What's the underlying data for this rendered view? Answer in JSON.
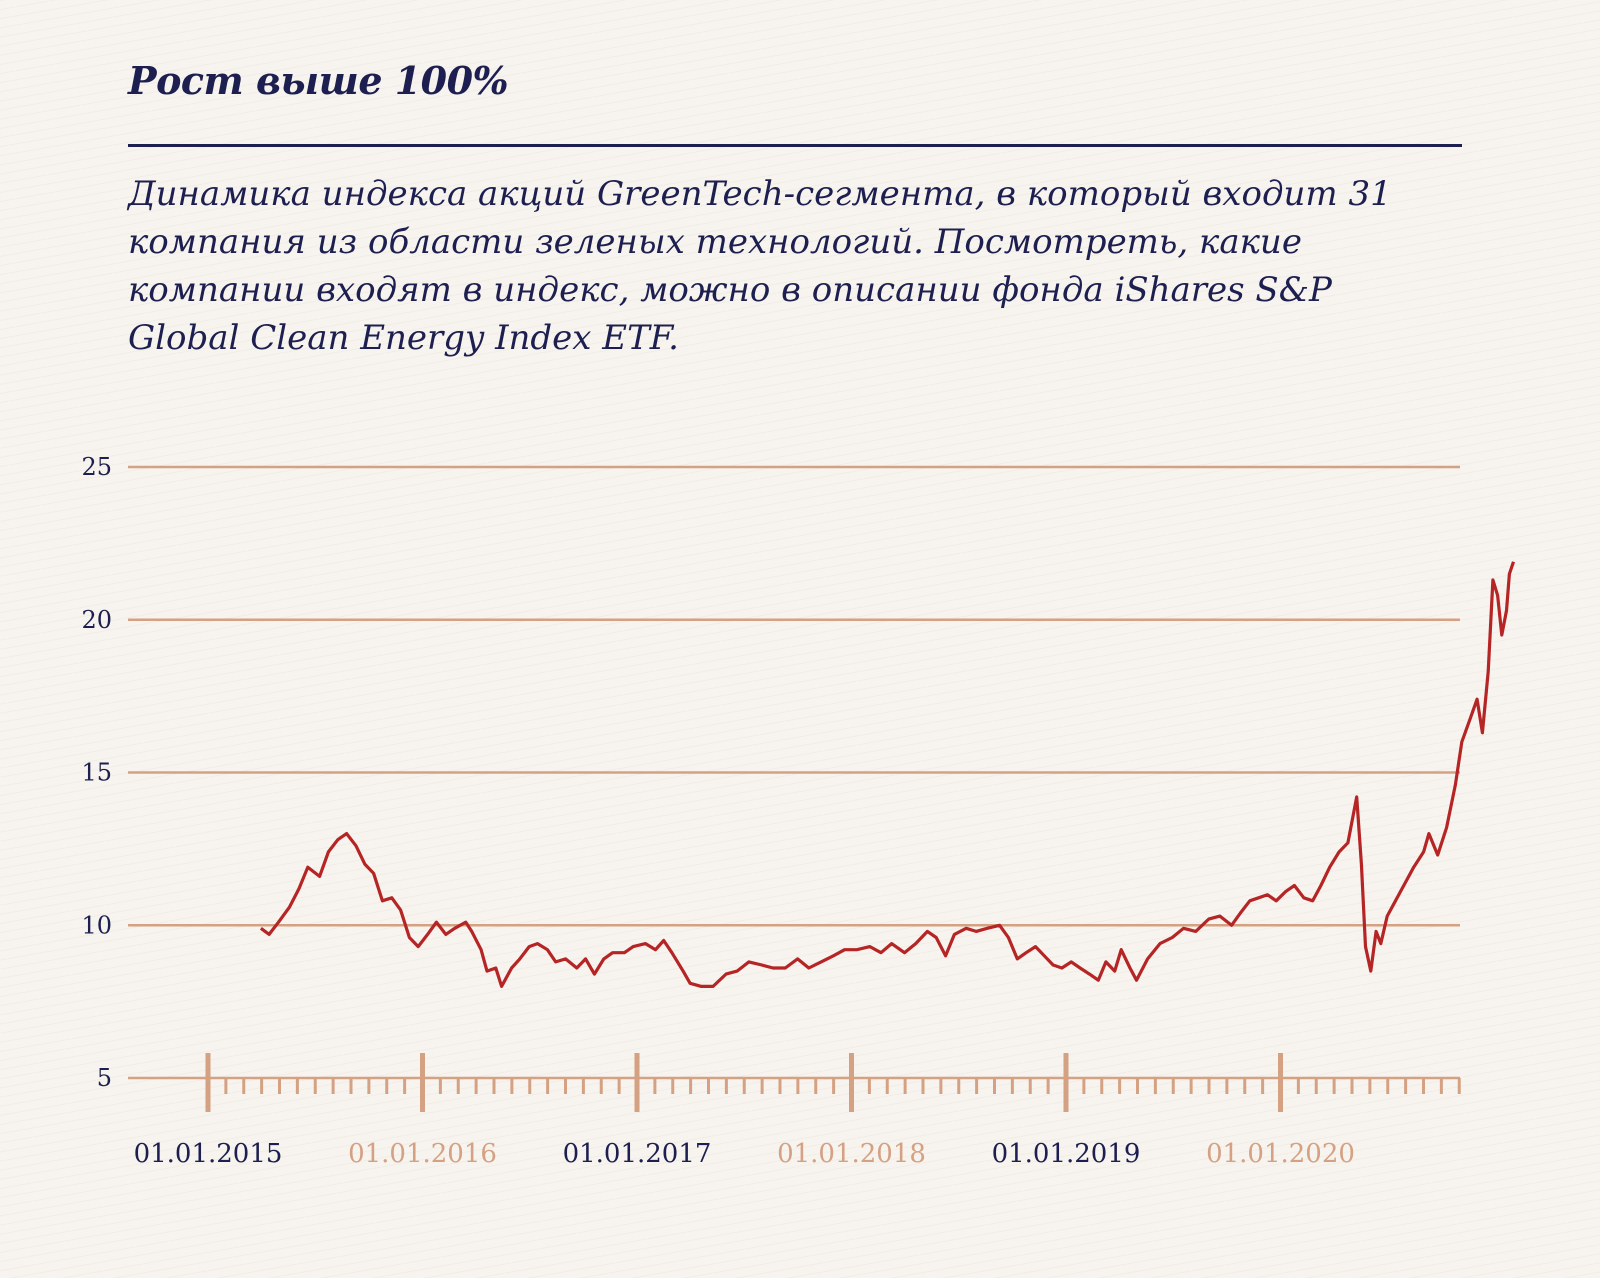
{
  "title": "Рост выше 100%",
  "subtitle": "Динамика индекса акций GreenTech-сегмента, в который входит 31 компания из области зеленых технологий. Посмотреть, какие компании входят в индекс, можно в описании фонда iShares S&P Global Clean Energy Index ETF.",
  "colors": {
    "text": "#1c1f4f",
    "grid": "#d4a183",
    "line": "#b52525",
    "tick_label_alt": "#d4a183",
    "background": "#f7f3ee"
  },
  "chart_data": {
    "type": "line",
    "title": "",
    "xlabel": "",
    "ylabel": "",
    "ylim": [
      5,
      25
    ],
    "yticks": [
      25,
      20,
      15,
      10,
      5
    ],
    "grid": true,
    "x_tick_labels": [
      "01.01.2015",
      "01.01.2016",
      "01.01.2017",
      "01.01.2018",
      "01.01.2019",
      "01.01.2020"
    ],
    "series": [
      {
        "values": [
          [
            "2015-04-01",
            9.9
          ],
          [
            "2015-04-15",
            9.7
          ],
          [
            "2015-05-01",
            10.1
          ],
          [
            "2015-05-20",
            10.6
          ],
          [
            "2015-06-05",
            11.2
          ],
          [
            "2015-06-20",
            11.9
          ],
          [
            "2015-07-10",
            11.6
          ],
          [
            "2015-07-25",
            12.4
          ],
          [
            "2015-08-10",
            12.8
          ],
          [
            "2015-08-25",
            13.0
          ],
          [
            "2015-09-10",
            12.6
          ],
          [
            "2015-09-25",
            12.0
          ],
          [
            "2015-10-10",
            11.7
          ],
          [
            "2015-10-25",
            10.8
          ],
          [
            "2015-11-10",
            10.9
          ],
          [
            "2015-11-25",
            10.5
          ],
          [
            "2015-12-10",
            9.6
          ],
          [
            "2015-12-25",
            9.3
          ],
          [
            "2016-01-10",
            9.7
          ],
          [
            "2016-01-25",
            10.1
          ],
          [
            "2016-02-10",
            9.7
          ],
          [
            "2016-02-25",
            9.9
          ],
          [
            "2016-03-15",
            10.1
          ],
          [
            "2016-03-25",
            9.8
          ],
          [
            "2016-04-10",
            9.2
          ],
          [
            "2016-04-20",
            8.5
          ],
          [
            "2016-05-05",
            8.6
          ],
          [
            "2016-05-15",
            8.0
          ],
          [
            "2016-06-01",
            8.6
          ],
          [
            "2016-06-15",
            8.9
          ],
          [
            "2016-07-01",
            9.3
          ],
          [
            "2016-07-15",
            9.4
          ],
          [
            "2016-08-01",
            9.2
          ],
          [
            "2016-08-15",
            8.8
          ],
          [
            "2016-09-01",
            8.9
          ],
          [
            "2016-09-20",
            8.6
          ],
          [
            "2016-10-05",
            8.9
          ],
          [
            "2016-10-20",
            8.4
          ],
          [
            "2016-11-05",
            8.9
          ],
          [
            "2016-11-20",
            9.1
          ],
          [
            "2016-12-10",
            9.1
          ],
          [
            "2016-12-25",
            9.3
          ],
          [
            "2017-01-15",
            9.4
          ],
          [
            "2017-02-01",
            9.2
          ],
          [
            "2017-02-15",
            9.5
          ],
          [
            "2017-03-01",
            9.1
          ],
          [
            "2017-03-20",
            8.5
          ],
          [
            "2017-04-01",
            8.1
          ],
          [
            "2017-04-20",
            8.0
          ],
          [
            "2017-05-10",
            8.0
          ],
          [
            "2017-06-01",
            8.4
          ],
          [
            "2017-06-20",
            8.5
          ],
          [
            "2017-07-10",
            8.8
          ],
          [
            "2017-08-01",
            8.7
          ],
          [
            "2017-08-20",
            8.6
          ],
          [
            "2017-09-10",
            8.6
          ],
          [
            "2017-10-01",
            8.9
          ],
          [
            "2017-10-20",
            8.6
          ],
          [
            "2017-11-10",
            8.8
          ],
          [
            "2017-12-01",
            9.0
          ],
          [
            "2017-12-20",
            9.2
          ],
          [
            "2018-01-10",
            9.2
          ],
          [
            "2018-02-01",
            9.3
          ],
          [
            "2018-02-20",
            9.1
          ],
          [
            "2018-03-10",
            9.4
          ],
          [
            "2018-04-01",
            9.1
          ],
          [
            "2018-04-20",
            9.4
          ],
          [
            "2018-05-10",
            9.8
          ],
          [
            "2018-05-25",
            9.6
          ],
          [
            "2018-06-10",
            9.0
          ],
          [
            "2018-06-25",
            9.7
          ],
          [
            "2018-07-15",
            9.9
          ],
          [
            "2018-08-01",
            9.8
          ],
          [
            "2018-08-20",
            9.9
          ],
          [
            "2018-09-10",
            10.0
          ],
          [
            "2018-09-25",
            9.6
          ],
          [
            "2018-10-10",
            8.9
          ],
          [
            "2018-10-25",
            9.1
          ],
          [
            "2018-11-10",
            9.3
          ],
          [
            "2018-11-25",
            9.0
          ],
          [
            "2018-12-10",
            8.7
          ],
          [
            "2018-12-25",
            8.6
          ],
          [
            "2019-01-10",
            8.8
          ],
          [
            "2019-01-25",
            8.6
          ],
          [
            "2019-02-10",
            8.4
          ],
          [
            "2019-02-25",
            8.2
          ],
          [
            "2019-03-10",
            8.8
          ],
          [
            "2019-03-25",
            8.5
          ],
          [
            "2019-04-05",
            9.2
          ],
          [
            "2019-04-20",
            8.6
          ],
          [
            "2019-05-01",
            8.2
          ],
          [
            "2019-05-20",
            8.9
          ],
          [
            "2019-06-10",
            9.4
          ],
          [
            "2019-07-01",
            9.6
          ],
          [
            "2019-07-20",
            9.9
          ],
          [
            "2019-08-10",
            9.8
          ],
          [
            "2019-09-01",
            10.2
          ],
          [
            "2019-09-20",
            10.3
          ],
          [
            "2019-10-10",
            10.0
          ],
          [
            "2019-10-25",
            10.4
          ],
          [
            "2019-11-10",
            10.8
          ],
          [
            "2019-11-25",
            10.9
          ],
          [
            "2019-12-10",
            11.0
          ],
          [
            "2019-12-25",
            10.8
          ],
          [
            "2020-01-10",
            11.1
          ],
          [
            "2020-01-25",
            11.3
          ],
          [
            "2020-02-10",
            10.9
          ],
          [
            "2020-02-25",
            10.8
          ],
          [
            "2020-03-10",
            11.3
          ],
          [
            "2020-03-25",
            11.9
          ],
          [
            "2020-04-10",
            12.4
          ],
          [
            "2020-04-25",
            12.7
          ],
          [
            "2020-05-10",
            14.2
          ],
          [
            "2020-05-18",
            12.0
          ],
          [
            "2020-05-25",
            9.3
          ],
          [
            "2020-06-03",
            8.5
          ],
          [
            "2020-06-12",
            9.8
          ],
          [
            "2020-06-20",
            9.4
          ],
          [
            "2020-07-01",
            10.3
          ],
          [
            "2020-07-15",
            10.8
          ],
          [
            "2020-08-01",
            11.4
          ],
          [
            "2020-08-15",
            11.9
          ],
          [
            "2020-09-01",
            12.4
          ],
          [
            "2020-09-10",
            13.0
          ],
          [
            "2020-09-25",
            12.3
          ],
          [
            "2020-10-10",
            13.2
          ],
          [
            "2020-10-25",
            14.6
          ],
          [
            "2020-11-05",
            16.0
          ],
          [
            "2020-11-20",
            16.8
          ],
          [
            "2020-12-01",
            17.4
          ],
          [
            "2020-12-10",
            16.3
          ],
          [
            "2020-12-20",
            18.3
          ],
          [
            "2020-12-28",
            21.3
          ],
          [
            "2021-01-05",
            20.8
          ],
          [
            "2021-01-12",
            19.5
          ],
          [
            "2021-01-20",
            20.3
          ],
          [
            "2021-01-25",
            21.5
          ],
          [
            "2021-02-01",
            21.9
          ]
        ]
      }
    ]
  }
}
